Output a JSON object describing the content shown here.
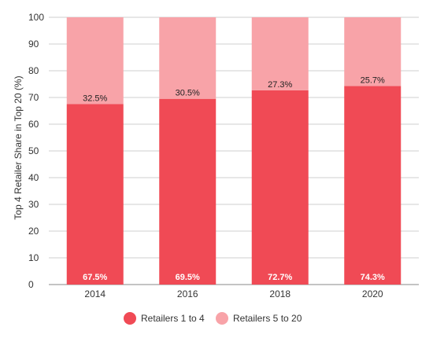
{
  "chart_data": {
    "type": "bar",
    "stacked": true,
    "categories": [
      "2014",
      "2016",
      "2018",
      "2020"
    ],
    "series": [
      {
        "name": "Retailers 1 to 4",
        "values": [
          67.5,
          69.5,
          72.7,
          74.3
        ],
        "labels": [
          "67.5%",
          "69.5%",
          "72.7%",
          "74.3%"
        ],
        "color": "#f04a55"
      },
      {
        "name": "Retailers 5 to 20",
        "values": [
          32.5,
          30.5,
          27.3,
          25.7
        ],
        "labels": [
          "32.5%",
          "30.5%",
          "27.3%",
          "25.7%"
        ],
        "color": "#f8a3a8"
      }
    ],
    "ylabel": "Top 4 Retailer Share in Top 20 (%)",
    "xlabel": "",
    "ylim": [
      0,
      100
    ],
    "yticks": [
      0,
      10,
      20,
      30,
      40,
      50,
      60,
      70,
      80,
      90,
      100
    ],
    "grid": true,
    "legend": "bottom"
  }
}
